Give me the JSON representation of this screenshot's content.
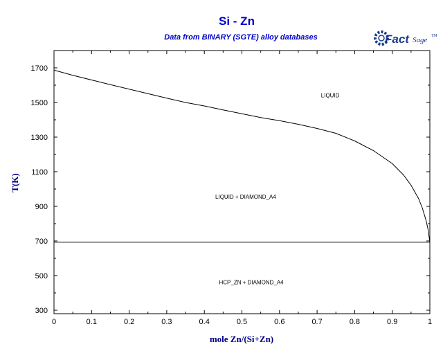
{
  "colors": {
    "title": "#0000cc",
    "axis_label": "#00008b",
    "logo": "#1a3a8a",
    "line": "#000000"
  },
  "logo": {
    "brand": "Fact",
    "suffix": "Sage",
    "mark": "TM",
    "icon": "factsage-gear-icon"
  },
  "chart_data": {
    "type": "line",
    "title": "Si - Zn",
    "subtitle": "Data from BINARY (SGTE) alloy databases",
    "xlabel": "mole Zn/(Si+Zn)",
    "ylabel": "T(K)",
    "xlim": [
      0,
      1
    ],
    "ylim": [
      280,
      1800
    ],
    "x_ticks": [
      0,
      0.1,
      0.2,
      0.3,
      0.4,
      0.5,
      0.6,
      0.7,
      0.8,
      0.9,
      1
    ],
    "y_ticks": [
      300,
      500,
      700,
      900,
      1100,
      1300,
      1500,
      1700
    ],
    "x_tick_labels": [
      "0",
      "0.1",
      "0.2",
      "0.3",
      "0.4",
      "0.5",
      "0.6",
      "0.7",
      "0.8",
      "0.9",
      "1"
    ],
    "y_tick_labels": [
      "300",
      "500",
      "700",
      "900",
      "1100",
      "1300",
      "1500",
      "1700"
    ],
    "grid": false,
    "series": [
      {
        "values": [
          {
            "x": 0.0,
            "y": 1687
          },
          {
            "x": 0.05,
            "y": 1657
          },
          {
            "x": 0.1,
            "y": 1630
          },
          {
            "x": 0.15,
            "y": 1603
          },
          {
            "x": 0.2,
            "y": 1577
          },
          {
            "x": 0.25,
            "y": 1551
          },
          {
            "x": 0.3,
            "y": 1525
          },
          {
            "x": 0.35,
            "y": 1500
          },
          {
            "x": 0.4,
            "y": 1480
          },
          {
            "x": 0.45,
            "y": 1457
          },
          {
            "x": 0.5,
            "y": 1435
          },
          {
            "x": 0.55,
            "y": 1413
          },
          {
            "x": 0.6,
            "y": 1395
          },
          {
            "x": 0.65,
            "y": 1374
          },
          {
            "x": 0.7,
            "y": 1350
          },
          {
            "x": 0.75,
            "y": 1322
          },
          {
            "x": 0.8,
            "y": 1278
          },
          {
            "x": 0.85,
            "y": 1222
          },
          {
            "x": 0.9,
            "y": 1147
          },
          {
            "x": 0.93,
            "y": 1081
          },
          {
            "x": 0.95,
            "y": 1022
          },
          {
            "x": 0.97,
            "y": 945
          },
          {
            "x": 0.98,
            "y": 890
          },
          {
            "x": 0.99,
            "y": 818
          },
          {
            "x": 0.995,
            "y": 770
          },
          {
            "x": 1.0,
            "y": 693
          }
        ]
      },
      {
        "values": [
          {
            "x": 0.0,
            "y": 693
          },
          {
            "x": 1.0,
            "y": 693
          }
        ]
      }
    ],
    "annotations": [
      {
        "text": "LIQUID",
        "x": 0.735,
        "y": 1530
      },
      {
        "text": "LIQUID + DIAMOND_A4",
        "x": 0.51,
        "y": 945
      },
      {
        "text": "HCP_ZN + DIAMOND_A4",
        "x": 0.525,
        "y": 450
      }
    ]
  }
}
